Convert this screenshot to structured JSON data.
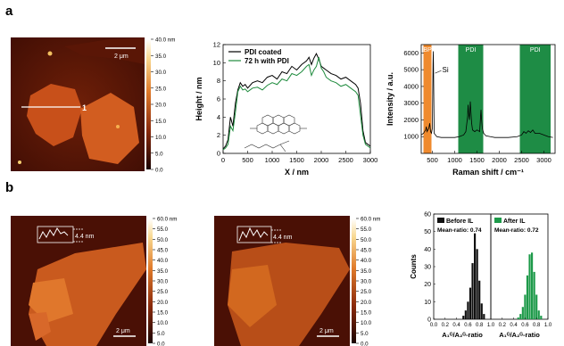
{
  "panels": {
    "a": "a",
    "b": "b"
  },
  "afm": {
    "a_scalebar": "2 μm",
    "a_line_label": "1",
    "colorbar_a": [
      "40.0 nm",
      "35.0",
      "30.0",
      "25.0",
      "20.0",
      "15.0",
      "10.0",
      "5.0",
      "0.0"
    ],
    "colorbar_b": [
      "60.0 nm",
      "55.0",
      "50.0",
      "45.0",
      "40.0",
      "35.0",
      "30.0",
      "25.0",
      "20.0",
      "15.0",
      "10.0",
      "5.0",
      "0.0"
    ],
    "b1_scalebar": "2 μm",
    "b2_scalebar": "2 μm",
    "b1_step": "4.4 nm",
    "b2_step": "4.4 nm",
    "colors": {
      "dark": "#3a0a04",
      "mid": "#8a2a0c",
      "flake": "#d0571c",
      "bright": "#f6b050"
    }
  },
  "chart_data": [
    {
      "type": "line",
      "title": "",
      "xlabel": "X / nm",
      "ylabel": "Height / nm",
      "xlim": [
        0,
        3000
      ],
      "ylim": [
        0,
        12
      ],
      "xticks": [
        "0",
        "500",
        "1000",
        "1500",
        "2000",
        "2500",
        "3000"
      ],
      "yticks": [
        "0",
        "2",
        "4",
        "6",
        "8",
        "10",
        "12"
      ],
      "legend_position": "top-left",
      "series": [
        {
          "name": "PDI coated",
          "color": "#000000",
          "x": [
            0,
            50,
            100,
            150,
            200,
            250,
            300,
            350,
            400,
            450,
            500,
            550,
            600,
            700,
            800,
            900,
            1000,
            1100,
            1200,
            1300,
            1400,
            1500,
            1600,
            1700,
            1750,
            1800,
            1850,
            1900,
            1950,
            2000,
            2050,
            2100,
            2200,
            2300,
            2400,
            2500,
            2600,
            2700,
            2750,
            2800,
            2850,
            2900,
            3000
          ],
          "y": [
            0.5,
            0.8,
            1.5,
            4.0,
            3.0,
            5.5,
            7.0,
            7.8,
            7.4,
            7.6,
            7.2,
            7.5,
            7.8,
            8.0,
            7.8,
            8.4,
            8.6,
            8.2,
            9.0,
            8.8,
            9.6,
            9.2,
            9.8,
            10.2,
            10.6,
            9.8,
            10.5,
            11.0,
            10.4,
            9.6,
            9.4,
            9.2,
            8.8,
            8.6,
            8.2,
            8.4,
            8.0,
            7.6,
            7.2,
            5.5,
            2.5,
            1.2,
            0.8
          ]
        },
        {
          "name": "72 h with PDI",
          "color": "#1d8a3c",
          "x": [
            0,
            50,
            100,
            150,
            200,
            250,
            300,
            350,
            400,
            450,
            500,
            550,
            600,
            700,
            800,
            900,
            1000,
            1100,
            1200,
            1300,
            1400,
            1500,
            1600,
            1700,
            1750,
            1800,
            1850,
            1900,
            1950,
            2000,
            2050,
            2100,
            2200,
            2300,
            2400,
            2500,
            2600,
            2700,
            2750,
            2800,
            2850,
            2900,
            3000
          ],
          "y": [
            0.4,
            0.6,
            1.0,
            3.0,
            2.5,
            4.5,
            6.8,
            7.4,
            7.0,
            7.1,
            6.8,
            7.0,
            7.2,
            7.3,
            7.0,
            7.5,
            7.8,
            7.6,
            8.2,
            8.0,
            8.8,
            8.6,
            9.0,
            9.6,
            9.8,
            8.6,
            9.2,
            9.6,
            10.6,
            9.4,
            9.0,
            8.4,
            8.0,
            7.8,
            7.4,
            7.6,
            7.2,
            6.8,
            6.4,
            4.2,
            2.0,
            1.0,
            0.6
          ]
        }
      ]
    },
    {
      "type": "line",
      "title": "",
      "xlabel": "Raman shift / cm⁻¹",
      "ylabel": "Intensity / a.u.",
      "xlim": [
        250,
        3250
      ],
      "ylim": [
        0,
        6500
      ],
      "xticks": [
        "500",
        "1000",
        "1500",
        "2000",
        "2500",
        "3000"
      ],
      "yticks": [
        "1000",
        "2000",
        "3000",
        "4000",
        "5000",
        "6000"
      ],
      "bands": [
        {
          "label": "BP",
          "from": 300,
          "to": 480,
          "color": "#ef8a2e"
        },
        {
          "label": "PDI",
          "from": 1080,
          "to": 1640,
          "color": "#1e8c45"
        },
        {
          "label": "PDI",
          "from": 2460,
          "to": 3150,
          "color": "#1e8c45"
        }
      ],
      "annotations": [
        {
          "text": "Si",
          "x": 520,
          "y": 5000
        }
      ],
      "series": [
        {
          "name": "",
          "color": "#000000",
          "x": [
            250,
            300,
            350,
            365,
            380,
            420,
            440,
            460,
            480,
            500,
            515,
            520,
            525,
            540,
            600,
            700,
            800,
            900,
            1000,
            1100,
            1200,
            1250,
            1290,
            1300,
            1310,
            1330,
            1350,
            1380,
            1400,
            1450,
            1500,
            1560,
            1580,
            1590,
            1600,
            1620,
            1650,
            1700,
            1800,
            1900,
            2000,
            2200,
            2400,
            2500,
            2550,
            2600,
            2650,
            2700,
            2750,
            2800,
            2900,
            3000,
            3100,
            3200
          ],
          "y": [
            1100,
            1200,
            1400,
            1600,
            1300,
            1500,
            1800,
            1300,
            1200,
            1500,
            5400,
            6100,
            5400,
            1200,
            1000,
            950,
            950,
            950,
            950,
            1000,
            1100,
            1300,
            2200,
            2900,
            2500,
            2000,
            3100,
            1800,
            1400,
            1300,
            1400,
            1300,
            2200,
            2600,
            2100,
            1500,
            1200,
            1050,
            1000,
            950,
            950,
            950,
            1000,
            1100,
            1300,
            1200,
            1350,
            1250,
            1400,
            1200,
            1200,
            1100,
            1000,
            950
          ]
        }
      ]
    },
    {
      "type": "bar",
      "title": "",
      "xlabel": "A₁ᴳ/A₂ᴳ-ratio",
      "ylabel": "Counts",
      "ylim": [
        0,
        60
      ],
      "xlim": [
        0.0,
        1.0
      ],
      "yticks": [
        "0",
        "10",
        "20",
        "30",
        "40",
        "50",
        "60"
      ],
      "xticks": [
        "0.0",
        "0.2",
        "0.4",
        "0.6",
        "0.8",
        "1.0"
      ],
      "series": [
        {
          "name": "Before IL",
          "color": "#111111",
          "note": "Mean-ratio: 0.74",
          "bin_centers": [
            0.52,
            0.56,
            0.6,
            0.64,
            0.68,
            0.72,
            0.76,
            0.8,
            0.84,
            0.88
          ],
          "values": [
            2,
            5,
            10,
            18,
            32,
            49,
            40,
            22,
            9,
            3
          ]
        },
        {
          "name": "After IL",
          "color": "#1e9a4a",
          "note": "Mean-ratio: 0.72",
          "bin_centers": [
            0.48,
            0.52,
            0.56,
            0.6,
            0.64,
            0.68,
            0.72,
            0.76,
            0.8,
            0.84,
            0.88
          ],
          "values": [
            1,
            3,
            7,
            14,
            25,
            37,
            38,
            27,
            14,
            5,
            2
          ]
        }
      ]
    }
  ]
}
